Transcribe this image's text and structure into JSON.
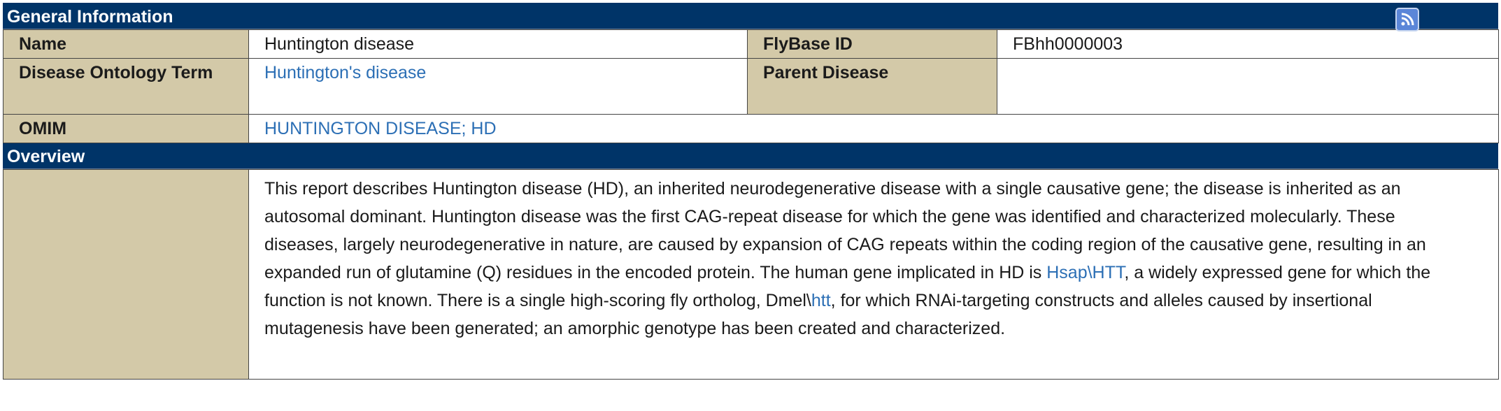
{
  "general": {
    "header": "General Information",
    "rss_icon": "rss-icon",
    "rows": {
      "name_label": "Name",
      "name_value": "Huntington disease",
      "flybase_label": "FlyBase ID",
      "flybase_value": "FBhh0000003",
      "do_label": "Disease Ontology Term",
      "do_value": "Huntington's disease",
      "parent_label": "Parent Disease",
      "parent_value": "",
      "omim_label": "OMIM",
      "omim_value": "HUNTINGTON DISEASE; HD"
    }
  },
  "overview": {
    "header": "Overview",
    "text_part1": "This report describes Huntington disease (HD), an inherited neurodegenerative disease with a single causative gene; the disease is inherited as an autosomal dominant. Huntington disease was the first CAG-repeat disease for which the gene was identified and characterized molecularly. These diseases, largely neurodegenerative in nature, are caused by expansion of CAG repeats within the coding region of the causative gene, resulting in an expanded run of glutamine (Q) residues in the encoded protein. The human gene implicated in HD is ",
    "link1": "Hsap\\HTT",
    "text_part2": ", a widely expressed gene for which the function is not known. There is a single high-scoring fly ortholog, Dmel\\",
    "link2": "htt",
    "text_part3": ", for which RNAi-targeting constructs and alleles caused by insertional mutagenesis have been generated; an amorphic genotype has been created and characterized."
  },
  "colors": {
    "header_bg": "#003468",
    "label_bg": "#d3c9a8",
    "link": "#2c6fb5"
  }
}
